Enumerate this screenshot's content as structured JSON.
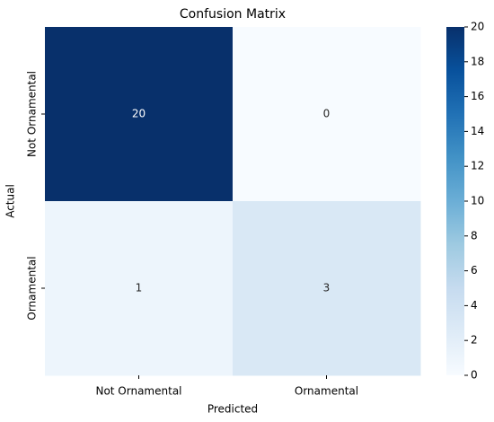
{
  "chart_data": {
    "type": "heatmap",
    "title": "Confusion Matrix",
    "x_label": "Predicted",
    "y_label": "Actual",
    "x_categories": [
      "Not Ornamental",
      "Ornamental"
    ],
    "y_categories": [
      "Not Ornamental",
      "Ornamental"
    ],
    "values": [
      [
        20,
        0
      ],
      [
        1,
        3
      ]
    ],
    "colormap": "Blues",
    "clim": [
      0,
      20
    ],
    "cticks": [
      0,
      2,
      4,
      6,
      8,
      10,
      12,
      14,
      16,
      18,
      20
    ]
  }
}
